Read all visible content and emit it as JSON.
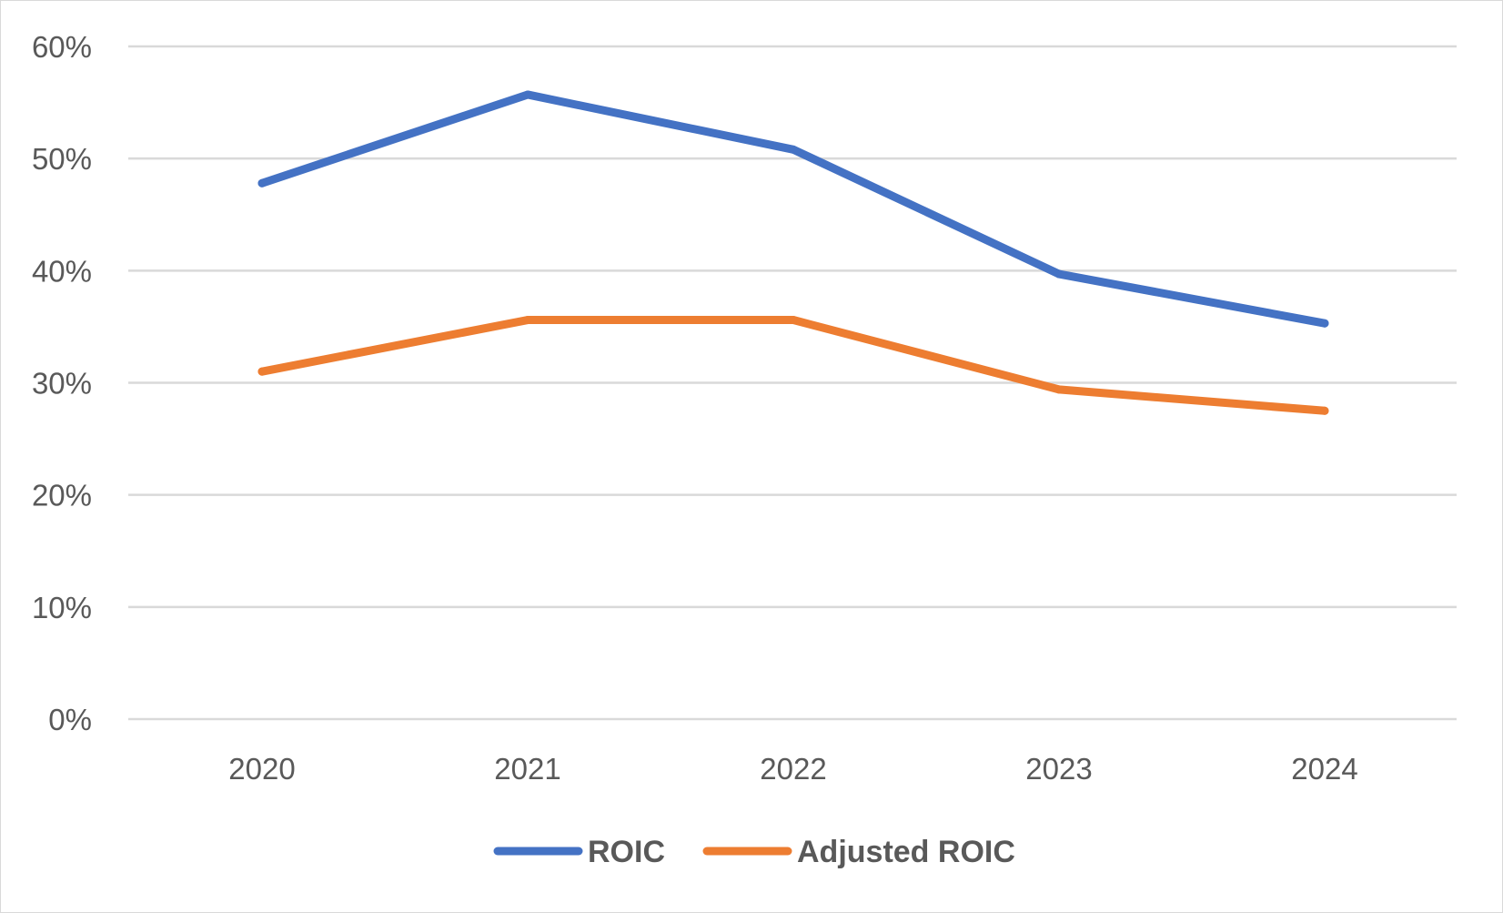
{
  "chart_data": {
    "type": "line",
    "title": "",
    "xlabel": "",
    "ylabel": "",
    "categories": [
      "2020",
      "2021",
      "2022",
      "2023",
      "2024"
    ],
    "y_tick_labels": [
      "0%",
      "10%",
      "20%",
      "30%",
      "40%",
      "50%",
      "60%"
    ],
    "ylim": [
      0,
      60
    ],
    "y_unit": "%",
    "grid": true,
    "legend_position": "bottom",
    "series": [
      {
        "name": "ROIC",
        "color": "#4472C4",
        "values": [
          47.8,
          55.7,
          50.8,
          39.7,
          35.3
        ]
      },
      {
        "name": "Adjusted ROIC",
        "color": "#ED7D31",
        "values": [
          31.0,
          35.6,
          35.6,
          29.4,
          27.5
        ]
      }
    ],
    "gridline_color": "#d9d9d9",
    "text_color": "#595959"
  }
}
